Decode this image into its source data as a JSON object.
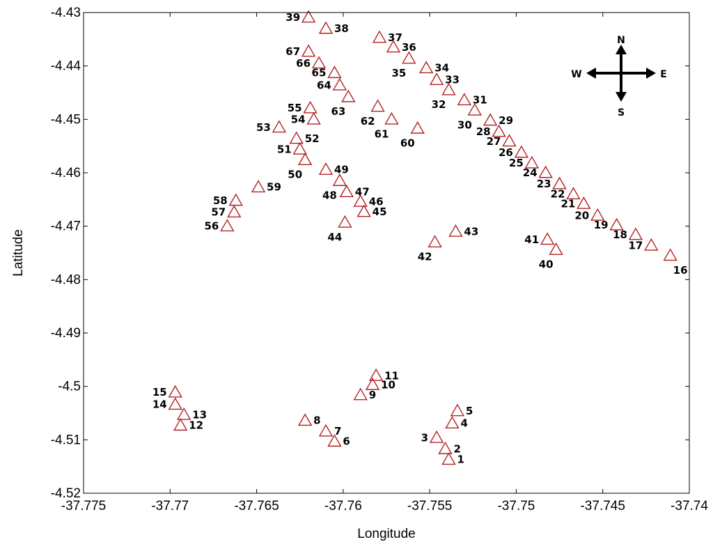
{
  "chart_data": {
    "type": "scatter",
    "xlabel": "Longitude",
    "ylabel": "Latitude",
    "xlim": [
      -37.775,
      -37.74
    ],
    "ylim": [
      -4.52,
      -4.43
    ],
    "x_ticks": [
      -37.775,
      -37.77,
      -37.765,
      -37.76,
      -37.755,
      -37.75,
      -37.745,
      -37.74
    ],
    "x_tick_labels": [
      "-37.775",
      "-37.77",
      "-37.765",
      "-37.76",
      "-37.755",
      "-37.75",
      "-37.745",
      "-37.74"
    ],
    "y_ticks": [
      -4.43,
      -4.44,
      -4.45,
      -4.46,
      -4.47,
      -4.48,
      -4.49,
      -4.5,
      -4.51,
      -4.52
    ],
    "y_tick_labels": [
      "-4.43",
      "-4.44",
      "-4.45",
      "-4.46",
      "-4.47",
      "-4.48",
      "-4.49",
      "-4.5",
      "-4.51",
      "-4.52"
    ],
    "grid": false,
    "marker": "triangle",
    "marker_color": "#b22222",
    "points": [
      {
        "label": "1",
        "x": -37.7539,
        "y": -4.5137
      },
      {
        "label": "2",
        "x": -37.7541,
        "y": -4.5117
      },
      {
        "label": "3",
        "x": -37.7546,
        "y": -4.5096
      },
      {
        "label": "4",
        "x": -37.7537,
        "y": -4.5069
      },
      {
        "label": "5",
        "x": -37.7534,
        "y": -4.5046
      },
      {
        "label": "6",
        "x": -37.7605,
        "y": -4.5103
      },
      {
        "label": "7",
        "x": -37.761,
        "y": -4.5084
      },
      {
        "label": "8",
        "x": -37.7622,
        "y": -4.5064
      },
      {
        "label": "9",
        "x": -37.759,
        "y": -4.5016
      },
      {
        "label": "10",
        "x": -37.7583,
        "y": -4.4997
      },
      {
        "label": "11",
        "x": -37.7581,
        "y": -4.498
      },
      {
        "label": "12",
        "x": -37.7694,
        "y": -4.5073
      },
      {
        "label": "13",
        "x": -37.7692,
        "y": -4.5053
      },
      {
        "label": "14",
        "x": -37.7697,
        "y": -4.5034
      },
      {
        "label": "15",
        "x": -37.7697,
        "y": -4.5011
      },
      {
        "label": "16",
        "x": -37.7411,
        "y": -4.4755
      },
      {
        "label": "17",
        "x": -37.7422,
        "y": -4.4736
      },
      {
        "label": "18",
        "x": -37.7431,
        "y": -4.4716
      },
      {
        "label": "19",
        "x": -37.7442,
        "y": -4.4698
      },
      {
        "label": "20",
        "x": -37.7453,
        "y": -4.468
      },
      {
        "label": "21",
        "x": -37.7461,
        "y": -4.4658
      },
      {
        "label": "22",
        "x": -37.7467,
        "y": -4.464
      },
      {
        "label": "23",
        "x": -37.7475,
        "y": -4.4621
      },
      {
        "label": "24",
        "x": -37.7483,
        "y": -4.46
      },
      {
        "label": "25",
        "x": -37.7491,
        "y": -4.4582
      },
      {
        "label": "26",
        "x": -37.7497,
        "y": -4.4562
      },
      {
        "label": "27",
        "x": -37.7504,
        "y": -4.4541
      },
      {
        "label": "28",
        "x": -37.751,
        "y": -4.4523
      },
      {
        "label": "29",
        "x": -37.7515,
        "y": -4.4502
      },
      {
        "label": "30",
        "x": -37.7524,
        "y": -4.4483
      },
      {
        "label": "31",
        "x": -37.753,
        "y": -4.4464
      },
      {
        "label": "32",
        "x": -37.7539,
        "y": -4.4445
      },
      {
        "label": "33",
        "x": -37.7546,
        "y": -4.4426
      },
      {
        "label": "34",
        "x": -37.7552,
        "y": -4.4404
      },
      {
        "label": "35",
        "x": -37.7562,
        "y": -4.4386
      },
      {
        "label": "36",
        "x": -37.7571,
        "y": -4.4365
      },
      {
        "label": "37",
        "x": -37.7579,
        "y": -4.4347
      },
      {
        "label": "38",
        "x": -37.761,
        "y": -4.433
      },
      {
        "label": "39",
        "x": -37.762,
        "y": -4.4309
      },
      {
        "label": "40",
        "x": -37.7477,
        "y": -4.4744
      },
      {
        "label": "41",
        "x": -37.7482,
        "y": -4.4725
      },
      {
        "label": "42",
        "x": -37.7547,
        "y": -4.473
      },
      {
        "label": "43",
        "x": -37.7535,
        "y": -4.471
      },
      {
        "label": "44",
        "x": -37.7599,
        "y": -4.4693
      },
      {
        "label": "45",
        "x": -37.7588,
        "y": -4.4673
      },
      {
        "label": "46",
        "x": -37.759,
        "y": -4.4654
      },
      {
        "label": "47",
        "x": -37.7598,
        "y": -4.4636
      },
      {
        "label": "48",
        "x": -37.7602,
        "y": -4.4615
      },
      {
        "label": "49",
        "x": -37.761,
        "y": -4.4594
      },
      {
        "label": "50",
        "x": -37.7622,
        "y": -4.4576
      },
      {
        "label": "51",
        "x": -37.7625,
        "y": -4.4556
      },
      {
        "label": "52",
        "x": -37.7627,
        "y": -4.4536
      },
      {
        "label": "53",
        "x": -37.7637,
        "y": -4.4515
      },
      {
        "label": "54",
        "x": -37.7617,
        "y": -4.45
      },
      {
        "label": "55",
        "x": -37.7619,
        "y": -4.4479
      },
      {
        "label": "56",
        "x": -37.7667,
        "y": -4.47
      },
      {
        "label": "57",
        "x": -37.7663,
        "y": -4.4674
      },
      {
        "label": "58",
        "x": -37.7662,
        "y": -4.4652
      },
      {
        "label": "59",
        "x": -37.7649,
        "y": -4.4627
      },
      {
        "label": "60",
        "x": -37.7557,
        "y": -4.4517
      },
      {
        "label": "61",
        "x": -37.7572,
        "y": -4.45
      },
      {
        "label": "62",
        "x": -37.758,
        "y": -4.4476
      },
      {
        "label": "63",
        "x": -37.7597,
        "y": -4.4458
      },
      {
        "label": "64",
        "x": -37.7602,
        "y": -4.4436
      },
      {
        "label": "65",
        "x": -37.7605,
        "y": -4.4413
      },
      {
        "label": "66",
        "x": -37.7614,
        "y": -4.4395
      },
      {
        "label": "67",
        "x": -37.762,
        "y": -4.4373
      }
    ],
    "compass": {
      "north": "N",
      "south": "S",
      "east": "E",
      "west": "W"
    }
  }
}
